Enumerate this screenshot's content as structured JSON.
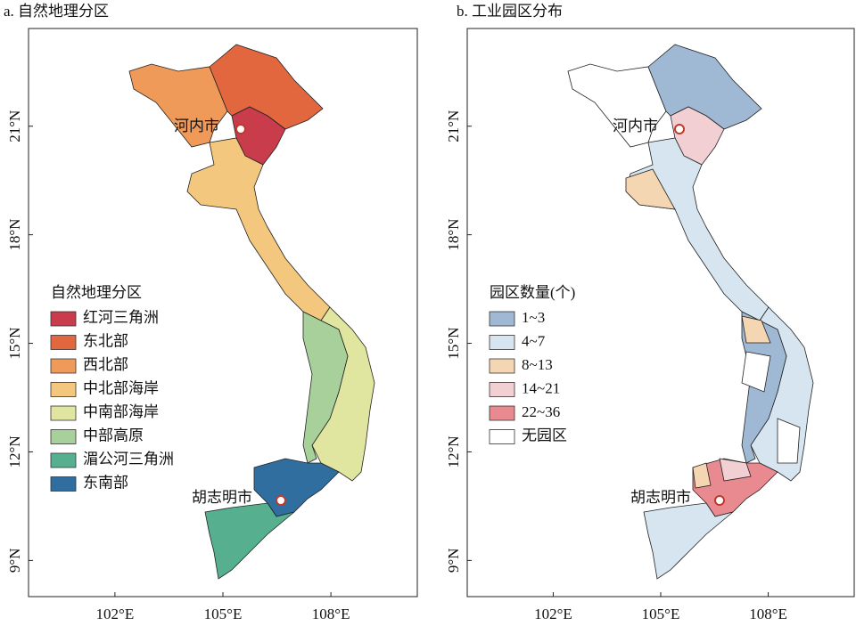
{
  "panels": [
    {
      "title": "a. 自然地理分区",
      "legend_title": "自然地理分区",
      "legend": [
        {
          "label": "红河三角洲",
          "color": "#c83c4b"
        },
        {
          "label": "东北部",
          "color": "#e2673e"
        },
        {
          "label": "西北部",
          "color": "#f09a5a"
        },
        {
          "label": "中北部海岸",
          "color": "#f4c77e"
        },
        {
          "label": "中南部海岸",
          "color": "#e0e6a0"
        },
        {
          "label": "中部高原",
          "color": "#a8d09a"
        },
        {
          "label": "湄公河三角洲",
          "color": "#56b08f"
        },
        {
          "label": "东南部",
          "color": "#2f6e9e"
        }
      ],
      "cities": [
        "河内市",
        "胡志明市"
      ],
      "lon_range": [
        99.6,
        110.4
      ],
      "lat_range": [
        8.0,
        23.7
      ],
      "lon_ticks": [
        {
          "value": 102,
          "label": "102°E"
        },
        {
          "value": 105,
          "label": "105°E"
        },
        {
          "value": 108,
          "label": "108°E"
        }
      ],
      "lat_ticks": [
        {
          "value": 21,
          "label": "21°N"
        },
        {
          "value": 18,
          "label": "18°N"
        },
        {
          "value": 15,
          "label": "15°N"
        },
        {
          "value": 12,
          "label": "12°N"
        },
        {
          "value": 9,
          "label": "9°N"
        }
      ]
    },
    {
      "title": "b. 工业园区分布",
      "legend_title": "园区数量(个)",
      "legend": [
        {
          "label": "1~3",
          "color": "#9fb9d4"
        },
        {
          "label": "4~7",
          "color": "#d6e5ef"
        },
        {
          "label": "8~13",
          "color": "#f5d6b2"
        },
        {
          "label": "14~21",
          "color": "#f2cfd2"
        },
        {
          "label": "22~36",
          "color": "#e98a90"
        },
        {
          "label": "无园区",
          "color": "#ffffff"
        }
      ],
      "cities": [
        "河内市",
        "胡志明市"
      ],
      "lon_range": [
        99.6,
        110.4
      ],
      "lat_range": [
        8.0,
        23.7
      ],
      "lon_ticks": [
        {
          "value": 102,
          "label": "102°E"
        },
        {
          "value": 105,
          "label": "105°E"
        },
        {
          "value": 108,
          "label": "108°E"
        }
      ],
      "lat_ticks": [
        {
          "value": 21,
          "label": "21°N"
        },
        {
          "value": 18,
          "label": "18°N"
        },
        {
          "value": 15,
          "label": "15°N"
        },
        {
          "value": 12,
          "label": "12°N"
        },
        {
          "value": 9,
          "label": "9°N"
        }
      ]
    }
  ]
}
